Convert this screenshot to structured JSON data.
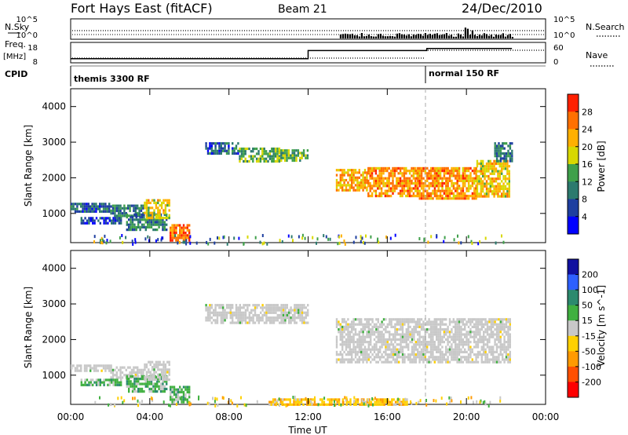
{
  "header": {
    "station": "Fort Hays East (fitACF)",
    "beam": "Beam 21",
    "date": "24/Dec/2010"
  },
  "colors": {
    "background": "#ffffff",
    "axis": "#000000",
    "ground_scatter": "#c8c8c8",
    "power_scale": [
      "#0000ff",
      "#1e3fa0",
      "#2c7a6e",
      "#3fa04a",
      "#d8d800",
      "#ffb000",
      "#ff7000",
      "#ff2000"
    ],
    "velocity_scale": [
      "#1010a0",
      "#2e60ff",
      "#2c8a6e",
      "#40b040",
      "#c8c8c8",
      "#ffd000",
      "#ff9a00",
      "#ff5000",
      "#ff0000"
    ]
  },
  "strip_panels": {
    "nsky": {
      "left_label": "N.Sky",
      "right_label": "N.Search",
      "left_ticks": [
        "10^5",
        "10^0"
      ],
      "right_ticks": [
        "10^5",
        "10^0"
      ]
    },
    "freq": {
      "left_label": "Freq.",
      "left_unit": "[MHz]",
      "left_ticks": [
        "18",
        "8"
      ],
      "right_label": "Nave",
      "right_ticks": [
        "60",
        "0"
      ],
      "frequency_steps_mhz": [
        {
          "from_hour": 0,
          "to_hour": 12,
          "value": 10
        },
        {
          "from_hour": 12,
          "to_hour": 18,
          "value": 14
        },
        {
          "from_hour": 18,
          "to_hour": 22.3,
          "value": 15
        }
      ]
    },
    "cpid": {
      "label": "CPID",
      "modes": [
        {
          "start_hour": 0,
          "text": "themis 3300 RF"
        },
        {
          "start_hour": 18,
          "text": "normal 150 RF"
        }
      ]
    }
  },
  "chart_data": [
    {
      "type": "heatmap",
      "name": "power",
      "xlabel": "",
      "ylabel": "Slant Range [km]",
      "xlim": [
        0,
        24
      ],
      "ylim": [
        180,
        4500
      ],
      "y_ticks": [
        1000,
        2000,
        3000,
        4000
      ],
      "colorbar": {
        "label": "Power [dB]",
        "ticks": [
          4,
          8,
          12,
          16,
          20,
          24,
          28
        ],
        "range": [
          0,
          30
        ]
      },
      "regions": [
        {
          "hours": [
            0.0,
            2.0
          ],
          "range_km": [
            1050,
            1300
          ],
          "level": 8
        },
        {
          "hours": [
            2.0,
            3.7
          ],
          "range_km": [
            950,
            1250
          ],
          "level": 10
        },
        {
          "hours": [
            0.5,
            2.5
          ],
          "range_km": [
            700,
            900
          ],
          "level": 6
        },
        {
          "hours": [
            2.8,
            4.8
          ],
          "range_km": [
            550,
            1000
          ],
          "level": 10
        },
        {
          "hours": [
            3.7,
            5.0
          ],
          "range_km": [
            900,
            1400
          ],
          "level": 20
        },
        {
          "hours": [
            5.0,
            6.0
          ],
          "range_km": [
            250,
            700
          ],
          "level": 26
        },
        {
          "hours": [
            6.8,
            8.5
          ],
          "range_km": [
            2700,
            3000
          ],
          "level": 8
        },
        {
          "hours": [
            8.5,
            10.5
          ],
          "range_km": [
            2450,
            2850
          ],
          "level": 14
        },
        {
          "hours": [
            10.5,
            12.0
          ],
          "range_km": [
            2500,
            2800
          ],
          "level": 14
        },
        {
          "hours": [
            13.4,
            15.0
          ],
          "range_km": [
            1650,
            2250
          ],
          "level": 22
        },
        {
          "hours": [
            15.0,
            17.5
          ],
          "range_km": [
            1500,
            2300
          ],
          "level": 24
        },
        {
          "hours": [
            17.5,
            20.5
          ],
          "range_km": [
            1400,
            2300
          ],
          "level": 24
        },
        {
          "hours": [
            20.5,
            22.2
          ],
          "range_km": [
            1500,
            2500
          ],
          "level": 20
        },
        {
          "hours": [
            21.4,
            22.3
          ],
          "range_km": [
            2500,
            3000
          ],
          "level": 10
        }
      ]
    },
    {
      "type": "heatmap",
      "name": "velocity",
      "xlabel": "Time UT",
      "ylabel": "Slant Range [km]",
      "xlim": [
        0,
        24
      ],
      "ylim": [
        180,
        4500
      ],
      "x_ticks": [
        "00:00",
        "04:00",
        "08:00",
        "12:00",
        "16:00",
        "20:00",
        "00:00"
      ],
      "y_ticks": [
        1000,
        2000,
        3000,
        4000
      ],
      "colorbar": {
        "label": "Velocity [m s^-1]",
        "ticks": [
          200,
          100,
          50,
          15,
          -15,
          -50,
          -100,
          -200
        ],
        "range": [
          -250,
          250
        ]
      },
      "regions": [
        {
          "hours": [
            0.0,
            2.0
          ],
          "range_km": [
            1100,
            1300
          ],
          "level": 0,
          "ground": true
        },
        {
          "hours": [
            2.0,
            3.7
          ],
          "range_km": [
            950,
            1250
          ],
          "level": 0,
          "ground": true
        },
        {
          "hours": [
            0.5,
            2.5
          ],
          "range_km": [
            700,
            900
          ],
          "level": 30
        },
        {
          "hours": [
            2.8,
            4.8
          ],
          "range_km": [
            550,
            1000
          ],
          "level": 30
        },
        {
          "hours": [
            3.7,
            5.0
          ],
          "range_km": [
            900,
            1400
          ],
          "level": 0,
          "ground": true
        },
        {
          "hours": [
            5.0,
            6.0
          ],
          "range_km": [
            250,
            700
          ],
          "level": 30
        },
        {
          "hours": [
            6.8,
            12.0
          ],
          "range_km": [
            2450,
            3000
          ],
          "level": 0,
          "ground": true
        },
        {
          "hours": [
            13.4,
            22.2
          ],
          "range_km": [
            1400,
            2600
          ],
          "level": 0,
          "ground": true
        },
        {
          "hours": [
            10.0,
            17.0
          ],
          "range_km": [
            200,
            350
          ],
          "level": -40
        }
      ]
    }
  ]
}
